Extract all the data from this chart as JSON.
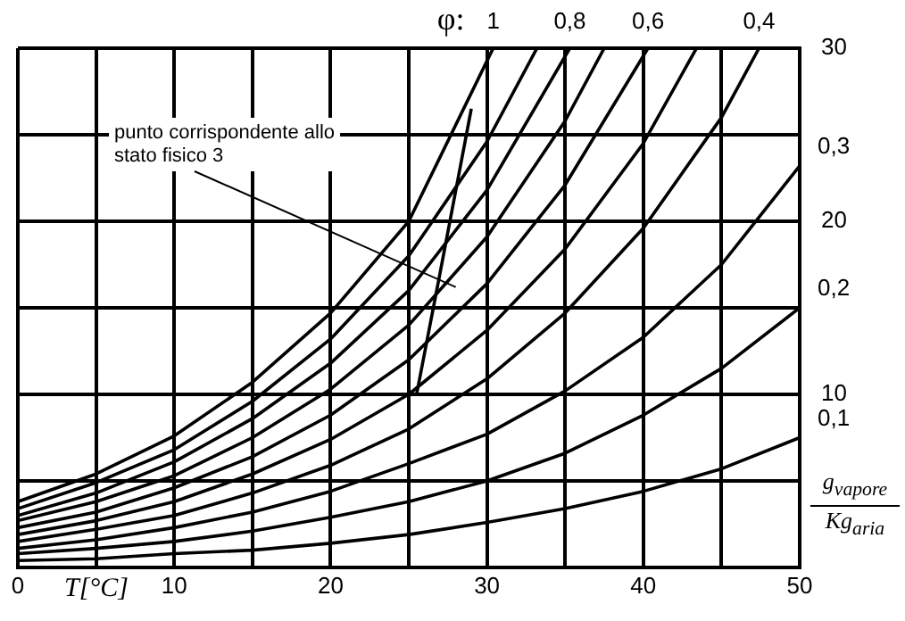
{
  "chart_data": {
    "type": "line",
    "xlabel": "T[°C]",
    "ylabel": "g$_{vapore}$ Kg$_{aria}$",
    "legend_title": "φ:",
    "xlim": [
      0,
      50
    ],
    "xticks": [
      0,
      {
        "value": 5,
        "label": null
      },
      10,
      {
        "value": 15,
        "label": null
      },
      20,
      {
        "value": 25,
        "label": null
      },
      30,
      {
        "value": 35,
        "label": null
      },
      40,
      {
        "value": 45,
        "label": null
      },
      50
    ],
    "ylim": [
      0,
      30
    ],
    "yticks": [
      {
        "value": 0,
        "label": null
      },
      {
        "value": 5,
        "label": null
      },
      10,
      {
        "value": 15,
        "label": null
      },
      20,
      {
        "value": 25,
        "label": null
      },
      30
    ],
    "grid": true,
    "legend": false,
    "marker": "none",
    "line_style": "solid",
    "series": [
      {
        "name": "1",
        "color": "#000000",
        "x": [
          0,
          5,
          10,
          15,
          20,
          25,
          30.4
        ],
        "values": [
          3.8,
          5.4,
          7.6,
          10.7,
          14.7,
          20,
          30
        ]
      },
      {
        "color": "#000000",
        "x": [
          0,
          5,
          10,
          15,
          20,
          25,
          30,
          33.2
        ],
        "values": [
          3.4,
          4.9,
          6.8,
          9.6,
          13.2,
          18,
          24.6,
          30
        ]
      },
      {
        "name": "0,8",
        "color": "#000000",
        "x": [
          0,
          5,
          10,
          15,
          20,
          25,
          30,
          35.3
        ],
        "values": [
          3.0,
          4.3,
          6.1,
          8.6,
          11.8,
          16,
          21.8,
          30
        ]
      },
      {
        "color": "#000000",
        "x": [
          0,
          5,
          10,
          15,
          20,
          25,
          30,
          35,
          37.5
        ],
        "values": [
          2.7,
          3.8,
          5.3,
          7.5,
          10.3,
          14,
          19.1,
          25.8,
          30
        ]
      },
      {
        "name": "0,6",
        "color": "#000000",
        "x": [
          0,
          5,
          10,
          15,
          20,
          25,
          30,
          35,
          40.3
        ],
        "values": [
          2.3,
          3.2,
          4.6,
          6.4,
          8.8,
          12,
          16.4,
          22.1,
          30
        ]
      },
      {
        "color": "#000000",
        "x": [
          0,
          5,
          10,
          15,
          20,
          25,
          30,
          35,
          40,
          43.4
        ],
        "values": [
          1.9,
          2.7,
          3.8,
          5.4,
          7.4,
          10,
          13.7,
          18.4,
          24.5,
          30
        ]
      },
      {
        "name": "0,4",
        "color": "#000000",
        "x": [
          0,
          5,
          10,
          15,
          20,
          25,
          30,
          35,
          40,
          45,
          47.4
        ],
        "values": [
          1.5,
          2.2,
          3.0,
          4.3,
          5.9,
          8,
          10.9,
          14.7,
          19.6,
          26,
          30
        ]
      },
      {
        "name": "0,3",
        "color": "#000000",
        "x": [
          0,
          5,
          10,
          15,
          20,
          25,
          30,
          35,
          40,
          45,
          50
        ],
        "values": [
          1.1,
          1.6,
          2.3,
          3.2,
          4.4,
          6,
          7.7,
          10.2,
          13.3,
          17.5,
          23.2
        ]
      },
      {
        "name": "0,2",
        "color": "#000000",
        "x": [
          0,
          5,
          10,
          15,
          20,
          25,
          30,
          35,
          40,
          45,
          50
        ],
        "values": [
          0.8,
          1.1,
          1.5,
          2.1,
          2.9,
          3.8,
          5.0,
          6.6,
          8.8,
          11.5,
          15
        ]
      },
      {
        "name": "0,1",
        "color": "#000000",
        "x": [
          0,
          5,
          10,
          15,
          20,
          25,
          30,
          35,
          40,
          45,
          50
        ],
        "values": [
          0.4,
          0.5,
          0.8,
          1.0,
          1.4,
          1.9,
          2.6,
          3.4,
          4.4,
          5.7,
          7.5
        ]
      },
      {
        "color": "#000000",
        "x": [
          25.5,
          27,
          29
        ],
        "values": [
          10,
          17,
          26.5
        ]
      }
    ],
    "annotations": [
      {
        "text": "punto corrispondente allo stato fisico 3",
        "x": 28,
        "y": 16.2
      }
    ]
  }
}
